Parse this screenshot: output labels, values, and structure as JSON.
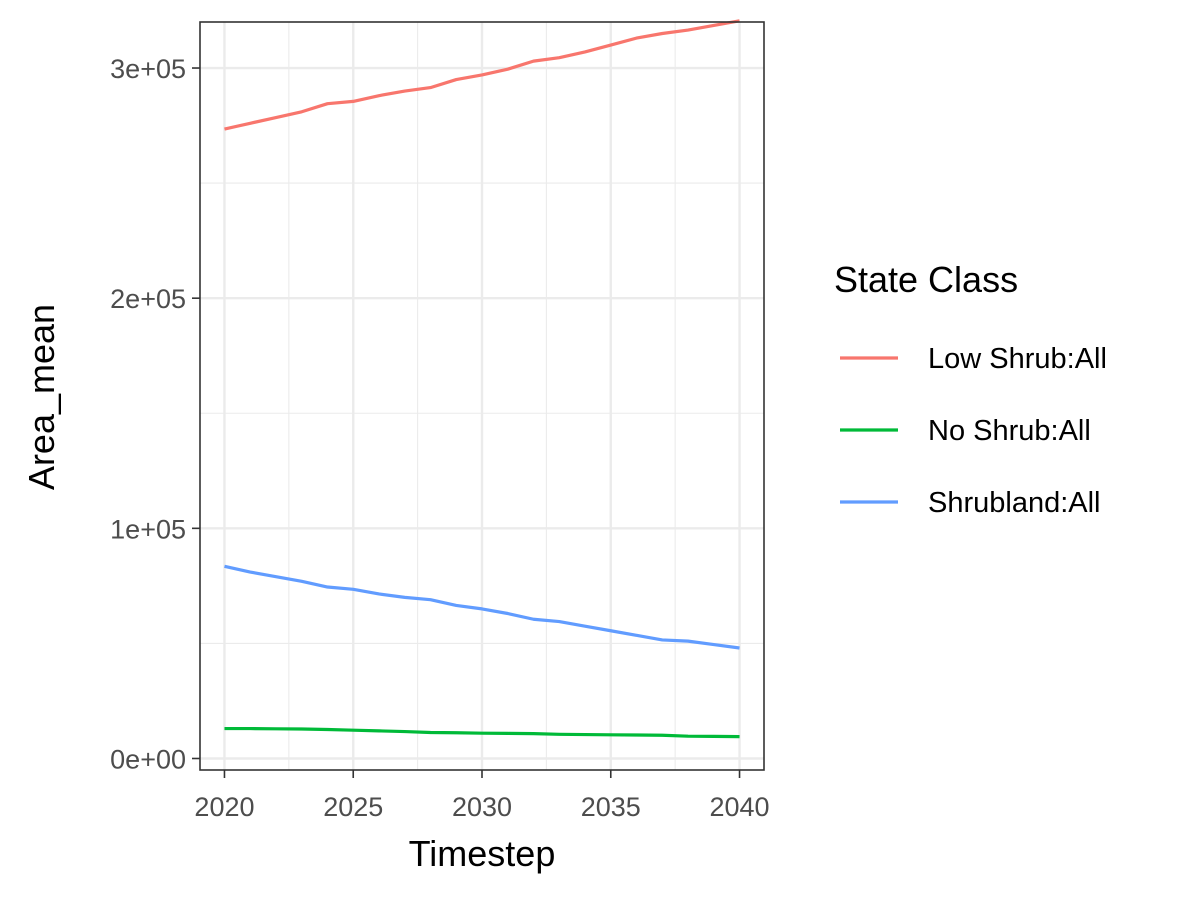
{
  "chart_data": {
    "type": "line",
    "xlabel": "Timestep",
    "ylabel": "Area_mean",
    "xlim": [
      2019.05,
      2040.95
    ],
    "ylim": [
      -5000,
      320000
    ],
    "x_ticks": [
      2020,
      2025,
      2030,
      2035,
      2040
    ],
    "x_tick_labels": [
      "2020",
      "2025",
      "2030",
      "2035",
      "2040"
    ],
    "y_ticks": [
      0,
      100000,
      200000,
      300000
    ],
    "y_tick_labels": [
      "0e+00",
      "1e+05",
      "2e+05",
      "3e+05"
    ],
    "x": [
      2020,
      2021,
      2022,
      2023,
      2024,
      2025,
      2026,
      2027,
      2028,
      2029,
      2030,
      2031,
      2032,
      2033,
      2034,
      2035,
      2036,
      2037,
      2038,
      2039,
      2040
    ],
    "legend": {
      "title": "State Class",
      "position": "right"
    },
    "grid": true,
    "series": [
      {
        "name": "Low Shrub:All",
        "color": "#F8766D",
        "values": [
          273500,
          276000,
          278500,
          281000,
          284500,
          285500,
          288000,
          290000,
          291500,
          295000,
          297000,
          299500,
          303000,
          304500,
          307000,
          310000,
          313000,
          315000,
          316500,
          318500,
          320500
        ]
      },
      {
        "name": "No Shrub:All",
        "color": "#00BA38",
        "values": [
          13000,
          13000,
          12900,
          12800,
          12600,
          12300,
          12000,
          11700,
          11300,
          11200,
          11000,
          10900,
          10800,
          10500,
          10400,
          10300,
          10200,
          10100,
          9700,
          9600,
          9500
        ]
      },
      {
        "name": "Shrubland:All",
        "color": "#619CFF",
        "values": [
          83500,
          81000,
          79000,
          77000,
          74500,
          73500,
          71500,
          70000,
          69000,
          66500,
          65000,
          63000,
          60500,
          59500,
          57500,
          55500,
          53500,
          51500,
          51000,
          49500,
          48000
        ]
      }
    ]
  }
}
